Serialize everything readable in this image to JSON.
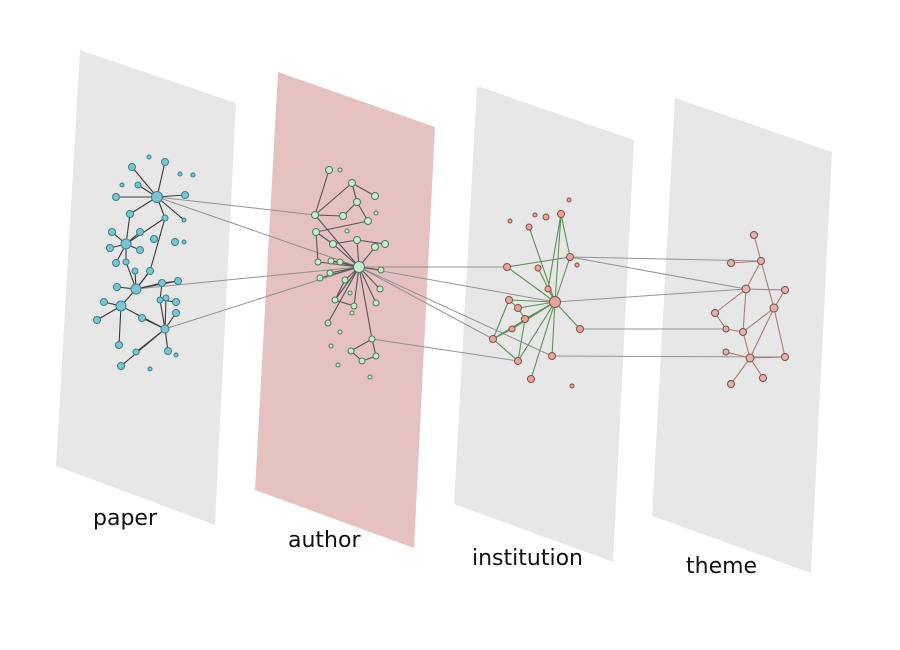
{
  "layers": [
    {
      "id": "paper",
      "label": "paper",
      "fill": "#e6e7e6",
      "node_color": "#7cc4d2",
      "node_stroke": "#3b7f8c",
      "edge_color": "#3a3a3a"
    },
    {
      "id": "author",
      "label": "author",
      "fill": "#e6c1c1",
      "node_color": "#c8ecd0",
      "node_stroke": "#4d7a57",
      "edge_color": "#555555"
    },
    {
      "id": "institution",
      "label": "institution",
      "fill": "#e6e7e6",
      "node_color": "#e8a59b",
      "node_stroke": "#8a4d45",
      "edge_color": "#5f8f5a"
    },
    {
      "id": "theme",
      "label": "theme",
      "fill": "#e6e7e6",
      "node_color": "#e2b2ac",
      "node_stroke": "#7a4e48",
      "edge_color": "#b07c72"
    }
  ],
  "colors": {
    "inter_layer_edge": "#8a8a8a",
    "highlighted_layer": "#e6c1c1",
    "background": "#ffffff"
  }
}
